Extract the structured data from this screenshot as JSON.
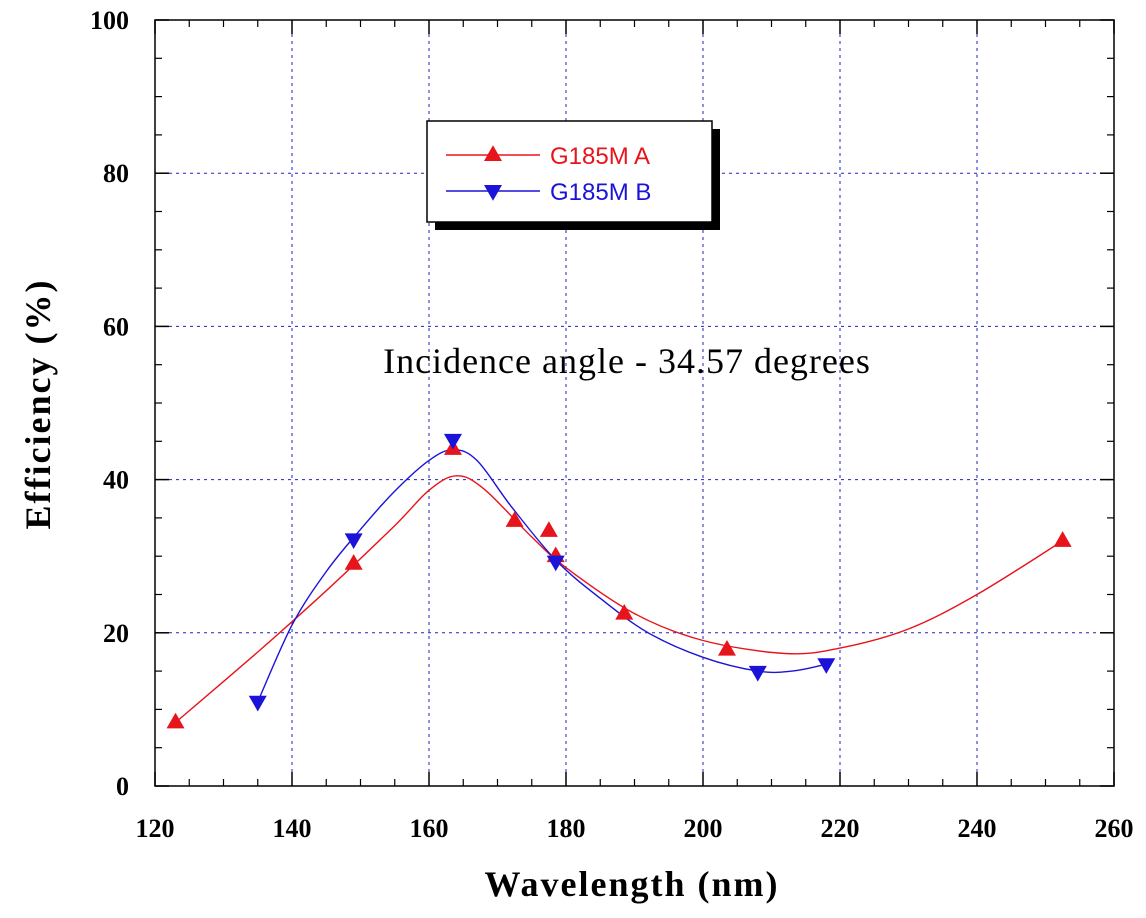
{
  "chart_data": {
    "type": "scatter",
    "xlabel": "Wavelength (nm)",
    "ylabel": "Efficiency (%)",
    "xlim": [
      120,
      260
    ],
    "ylim": [
      0,
      100
    ],
    "x_ticks": [
      120,
      140,
      160,
      180,
      200,
      220,
      240,
      260
    ],
    "y_ticks": [
      0,
      20,
      40,
      60,
      80,
      100
    ],
    "grid": true,
    "legend_position": "top-left",
    "annotation": "Incidence angle - 34.57 degrees",
    "series": [
      {
        "name": "G185M A",
        "color": "#e8141b",
        "marker": "triangle-up",
        "points": [
          {
            "x": 123,
            "y": 8.3
          },
          {
            "x": 149,
            "y": 29
          },
          {
            "x": 163.5,
            "y": 44
          },
          {
            "x": 172.5,
            "y": 34.6
          },
          {
            "x": 177.5,
            "y": 33.3
          },
          {
            "x": 178.5,
            "y": 30
          },
          {
            "x": 188.5,
            "y": 22.5
          },
          {
            "x": 203.5,
            "y": 17.8
          },
          {
            "x": 252.5,
            "y": 32
          }
        ],
        "fit_curve": [
          {
            "x": 123,
            "y": 8.3
          },
          {
            "x": 135,
            "y": 17.5
          },
          {
            "x": 145,
            "y": 25.5
          },
          {
            "x": 155,
            "y": 34
          },
          {
            "x": 160,
            "y": 38.6
          },
          {
            "x": 164,
            "y": 40.5
          },
          {
            "x": 168,
            "y": 38.8
          },
          {
            "x": 175,
            "y": 32.5
          },
          {
            "x": 180,
            "y": 28.5
          },
          {
            "x": 190,
            "y": 22.5
          },
          {
            "x": 200,
            "y": 19
          },
          {
            "x": 212,
            "y": 17.3
          },
          {
            "x": 220,
            "y": 18
          },
          {
            "x": 230,
            "y": 20.5
          },
          {
            "x": 240,
            "y": 25
          },
          {
            "x": 252.5,
            "y": 32
          }
        ]
      },
      {
        "name": "G185M B",
        "color": "#1b14d8",
        "marker": "triangle-down",
        "points": [
          {
            "x": 135,
            "y": 11
          },
          {
            "x": 149,
            "y": 32.2
          },
          {
            "x": 163.5,
            "y": 45.2
          },
          {
            "x": 178.5,
            "y": 29.3
          },
          {
            "x": 208,
            "y": 14.9
          },
          {
            "x": 218,
            "y": 15.9
          }
        ],
        "fit_curve": [
          {
            "x": 135,
            "y": 11
          },
          {
            "x": 140,
            "y": 21
          },
          {
            "x": 145,
            "y": 28
          },
          {
            "x": 150,
            "y": 33.5
          },
          {
            "x": 155,
            "y": 38.5
          },
          {
            "x": 160,
            "y": 42.5
          },
          {
            "x": 163.5,
            "y": 43.9
          },
          {
            "x": 167,
            "y": 42.5
          },
          {
            "x": 172,
            "y": 36.5
          },
          {
            "x": 178.5,
            "y": 29.5
          },
          {
            "x": 185,
            "y": 24.5
          },
          {
            "x": 192,
            "y": 20
          },
          {
            "x": 200,
            "y": 16.8
          },
          {
            "x": 208,
            "y": 15
          },
          {
            "x": 213,
            "y": 15
          },
          {
            "x": 218,
            "y": 15.9
          }
        ]
      }
    ]
  }
}
